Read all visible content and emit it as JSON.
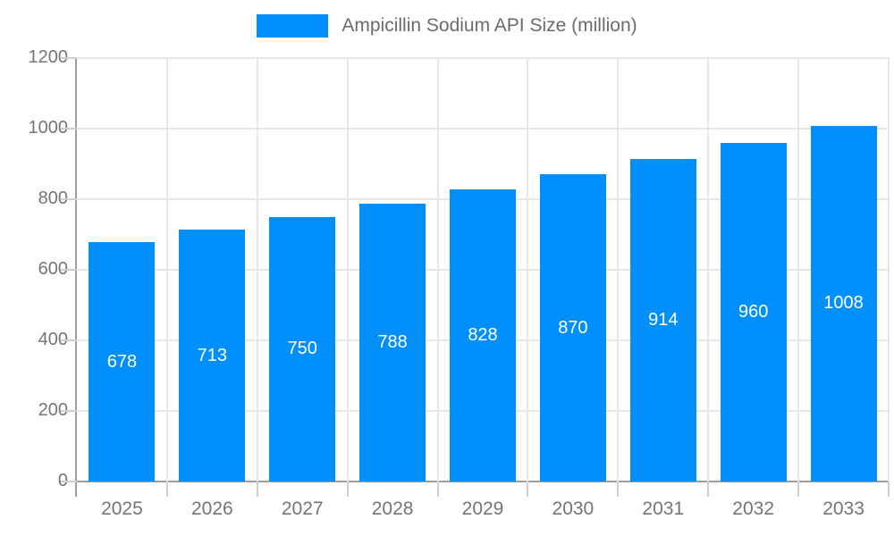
{
  "colors": {
    "bar": "#008FFB",
    "grid": "#e7e7e7",
    "axis": "#9e9e9e",
    "tick": "#cfcfcf",
    "tick_label": "#757575",
    "legend_text": "#6b6b6b",
    "value_label": "#ffffff",
    "background": "#ffffff"
  },
  "chart_data": {
    "type": "bar",
    "title": "Ampicillin Sodium API Size (million)",
    "legend": [
      "Ampicillin Sodium API Size (million)"
    ],
    "legend_position": "top",
    "categories": [
      "2025",
      "2026",
      "2027",
      "2028",
      "2029",
      "2030",
      "2031",
      "2032",
      "2033"
    ],
    "values": [
      678,
      713,
      750,
      788,
      828,
      870,
      914,
      960,
      1008
    ],
    "xlabel": "",
    "ylabel": "",
    "ylim": [
      0,
      1200
    ],
    "y_ticks": [
      0,
      200,
      400,
      600,
      800,
      1000,
      1200
    ],
    "grid": true,
    "value_labels": "inside-center"
  }
}
